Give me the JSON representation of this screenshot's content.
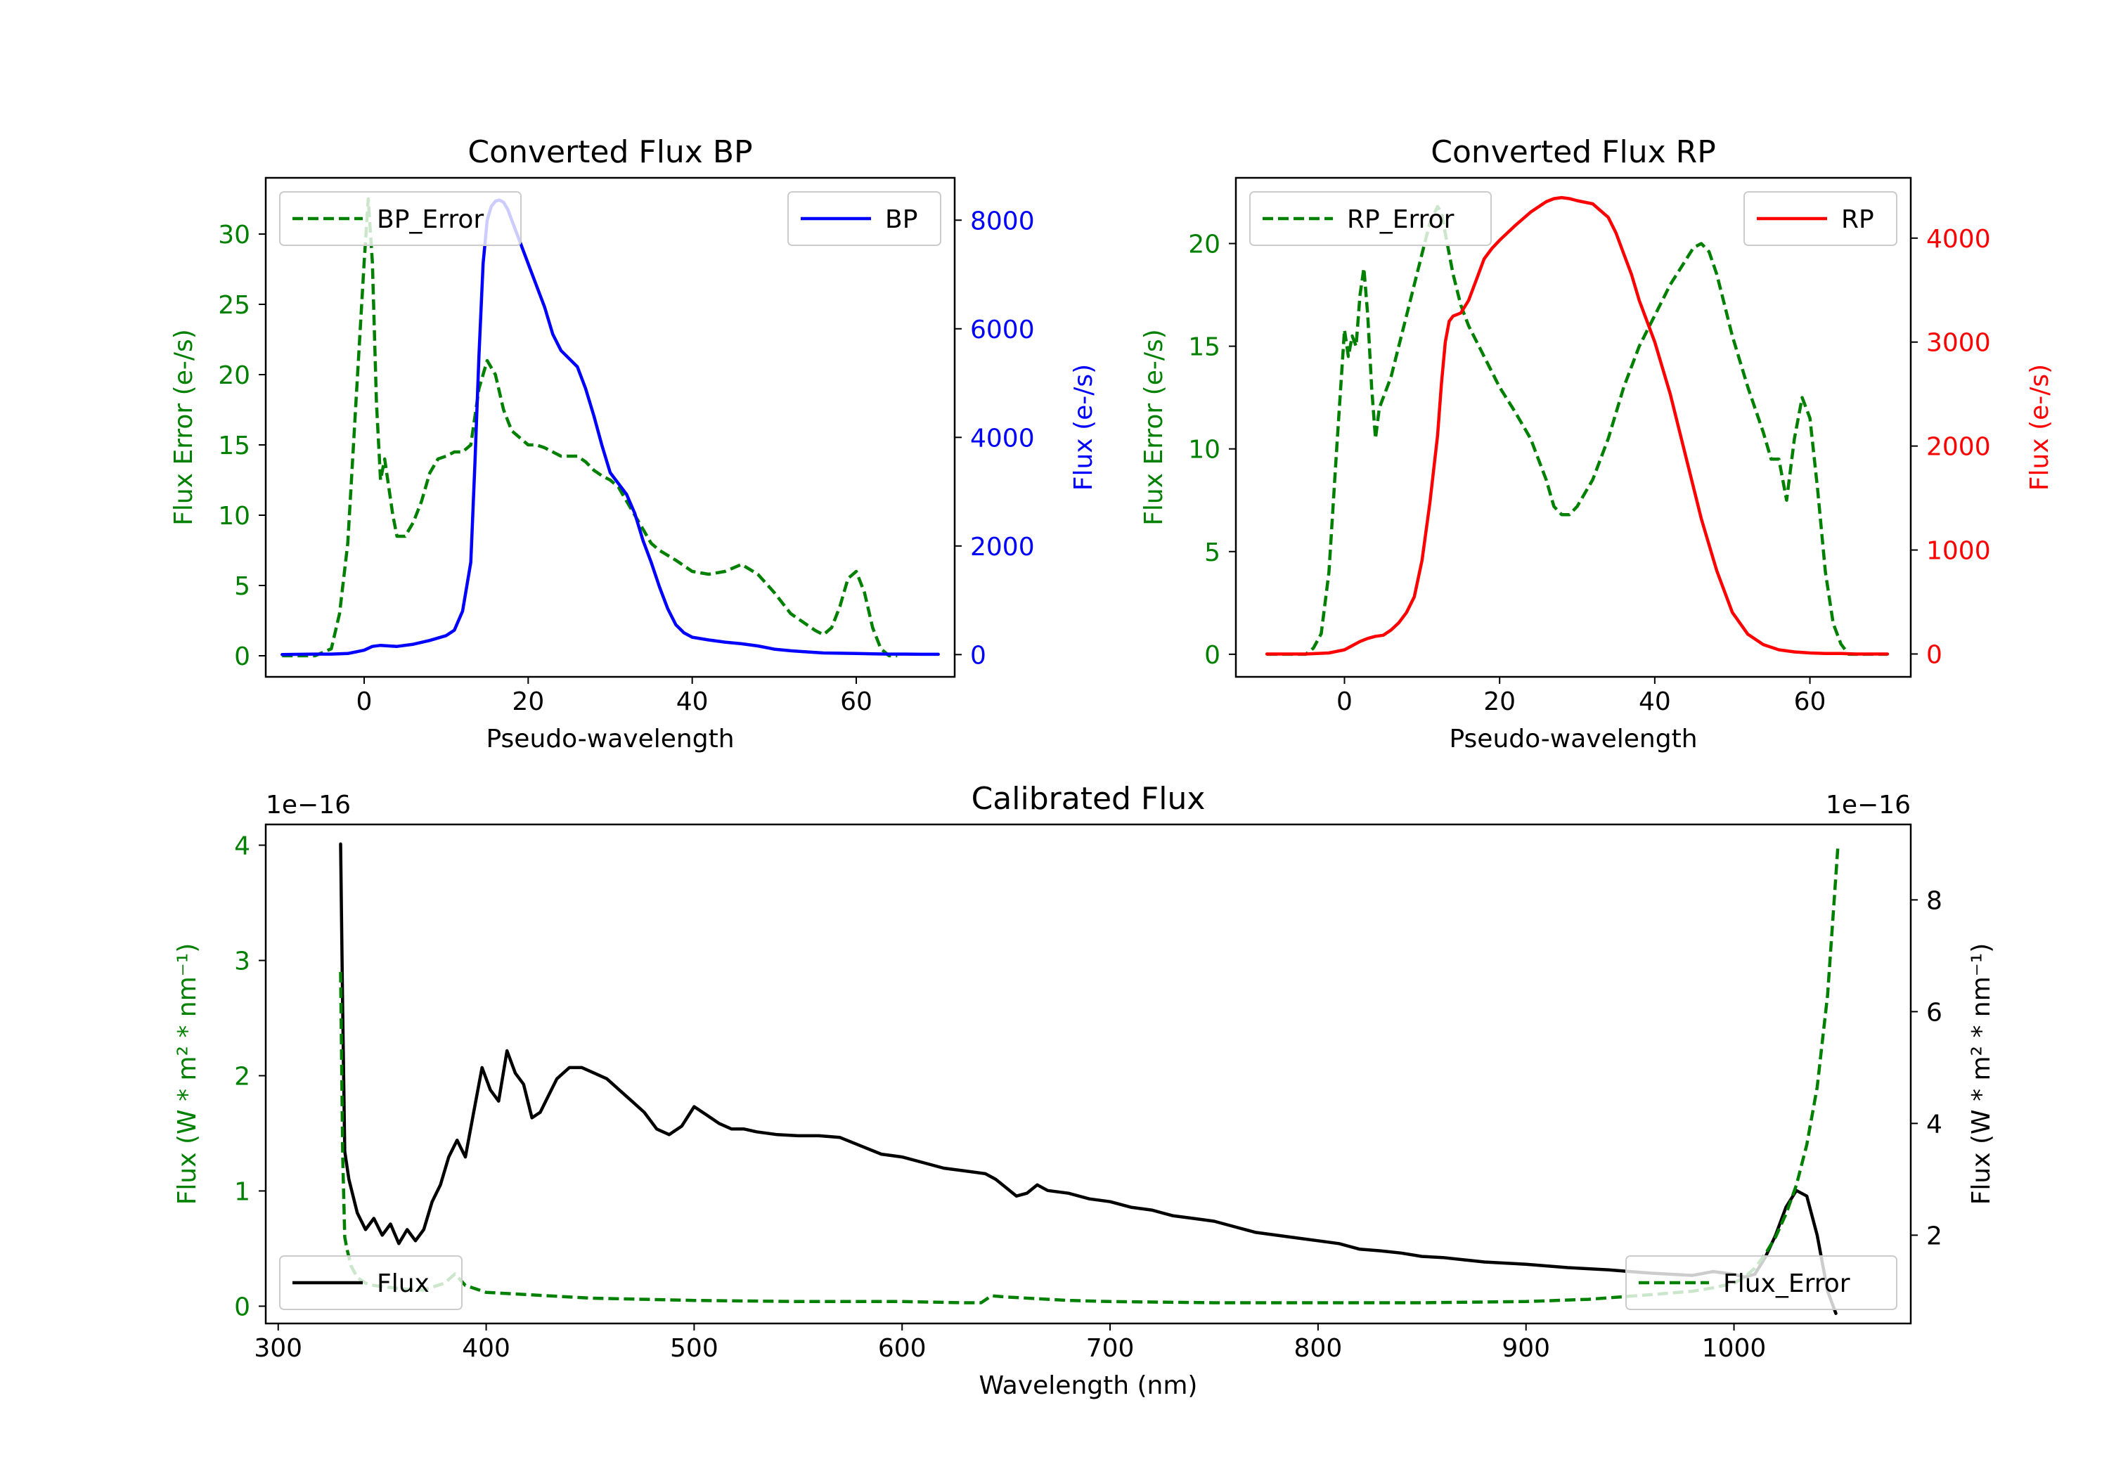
{
  "colors": {
    "green": "#008000",
    "blue": "#0000ff",
    "red": "#ff0000",
    "black": "#000000"
  },
  "chart_data": [
    {
      "id": "bp",
      "type": "line",
      "title": "Converted Flux BP",
      "xlabel": "Pseudo-wavelength",
      "ylabel_left": "Flux Error (e-/s)",
      "ylabel_right": "Flux (e-/s)",
      "xlim": [
        -12,
        72
      ],
      "ylim_left": [
        -1.5,
        34
      ],
      "ylim_right": [
        -410,
        8780
      ],
      "xticks": [
        0,
        20,
        40,
        60
      ],
      "yticks_left": [
        0,
        5,
        10,
        15,
        20,
        25,
        30
      ],
      "yticks_right": [
        0,
        2000,
        4000,
        6000,
        8000
      ],
      "legend_left": {
        "label": "BP_Error",
        "position": "upper left"
      },
      "legend_right": {
        "label": "BP",
        "position": "upper right"
      },
      "series": [
        {
          "name": "BP_Error",
          "axis": "left",
          "color": "#008000",
          "style": "dashed",
          "x": [
            -10,
            -6,
            -4,
            -3,
            -2,
            -1,
            0,
            0.5,
            1,
            1.5,
            2,
            2.5,
            3,
            3.5,
            4,
            5,
            6,
            7,
            8,
            9,
            10,
            11,
            12,
            13,
            14,
            15,
            16,
            17,
            18,
            19,
            20,
            21,
            22,
            23,
            24,
            25,
            26,
            27,
            28,
            29,
            30,
            31,
            32,
            33,
            34,
            35,
            36,
            38,
            40,
            42,
            44,
            46,
            48,
            50,
            52,
            54,
            55,
            56,
            57,
            58,
            59,
            60,
            61,
            62,
            63,
            64,
            65
          ],
          "y": [
            0,
            0,
            0.5,
            3,
            8,
            18,
            28,
            32.5,
            28,
            18,
            12.5,
            14,
            12,
            10,
            8.5,
            8.5,
            9.5,
            11,
            13,
            14,
            14.2,
            14.5,
            14.5,
            15,
            19,
            21,
            20,
            17.5,
            16,
            15.5,
            15,
            15,
            14.8,
            14.5,
            14.2,
            14.2,
            14.2,
            13.8,
            13.2,
            12.8,
            12.5,
            12,
            11,
            10,
            9,
            8,
            7.5,
            6.8,
            6,
            5.8,
            6,
            6.5,
            5.8,
            4.5,
            3,
            2.2,
            1.8,
            1.5,
            2,
            3.5,
            5.5,
            6,
            4.5,
            2,
            0.5,
            0,
            0
          ]
        },
        {
          "name": "BP",
          "axis": "right",
          "color": "#0000ff",
          "style": "solid",
          "x": [
            -10,
            -6,
            -4,
            -2,
            0,
            1,
            2,
            3,
            4,
            6,
            8,
            10,
            11,
            12,
            13,
            13.5,
            14,
            14.5,
            15,
            15.5,
            16,
            16.5,
            17,
            17.5,
            18,
            19,
            20,
            21,
            22,
            23,
            24,
            25,
            26,
            27,
            28,
            29,
            30,
            31,
            32,
            33,
            34,
            35,
            36,
            37,
            38,
            39,
            40,
            42,
            44,
            46,
            48,
            50,
            52,
            54,
            56,
            58,
            60,
            62,
            64,
            66,
            68,
            70
          ],
          "y": [
            0,
            10,
            10,
            20,
            80,
            150,
            170,
            160,
            150,
            190,
            260,
            350,
            450,
            800,
            1700,
            3500,
            5500,
            7200,
            8000,
            8250,
            8350,
            8370,
            8330,
            8200,
            8000,
            7600,
            7200,
            6800,
            6400,
            5900,
            5600,
            5450,
            5300,
            4900,
            4400,
            3850,
            3350,
            3150,
            2950,
            2600,
            2100,
            1700,
            1250,
            850,
            550,
            400,
            320,
            270,
            230,
            200,
            160,
            100,
            70,
            50,
            30,
            25,
            20,
            15,
            10,
            10,
            5,
            5
          ]
        }
      ]
    },
    {
      "id": "rp",
      "type": "line",
      "title": "Converted Flux RP",
      "xlabel": "Pseudo-wavelength",
      "ylabel_left": "Flux Error (e-/s)",
      "ylabel_right": "Flux (e-/s)",
      "xlim": [
        -14,
        73
      ],
      "ylim_left": [
        -1.1,
        23.2
      ],
      "ylim_right": [
        -220,
        4580
      ],
      "xticks": [
        0,
        20,
        40,
        60
      ],
      "yticks_left": [
        0,
        5,
        10,
        15,
        20
      ],
      "yticks_right": [
        0,
        1000,
        2000,
        3000,
        4000
      ],
      "legend_left": {
        "label": "RP_Error",
        "position": "upper left"
      },
      "legend_right": {
        "label": "RP",
        "position": "upper right"
      },
      "series": [
        {
          "name": "RP_Error",
          "axis": "left",
          "color": "#008000",
          "style": "dashed",
          "x": [
            -10,
            -5,
            -4,
            -3,
            -2,
            -1,
            0,
            0.5,
            1,
            1.5,
            2,
            2.5,
            3,
            3.5,
            4,
            4.5,
            5,
            6,
            7,
            8,
            9,
            10,
            11,
            12,
            12.5,
            13,
            14,
            15,
            16,
            18,
            20,
            22,
            24,
            25,
            26,
            27,
            28,
            29,
            30,
            32,
            34,
            36,
            38,
            40,
            42,
            44,
            45,
            46,
            47,
            48,
            49,
            50,
            52,
            54,
            55,
            56,
            57,
            58,
            59,
            60,
            61,
            62,
            63,
            64,
            65,
            70
          ],
          "y": [
            0,
            0,
            0.3,
            1,
            4,
            10,
            15.8,
            14.5,
            15.5,
            15,
            17.5,
            18.8,
            16.5,
            13,
            10.5,
            12,
            12.5,
            13.5,
            15,
            16.5,
            18,
            19.5,
            21,
            21.8,
            21.5,
            20.5,
            18.5,
            17,
            16,
            14.5,
            13,
            11.8,
            10.5,
            9.5,
            8.5,
            7.2,
            6.8,
            6.8,
            7.2,
            8.5,
            10.5,
            13,
            15,
            16.5,
            18,
            19.2,
            19.8,
            20,
            19.6,
            18.5,
            17,
            15.5,
            13,
            10.8,
            9.5,
            9.5,
            7.5,
            10.5,
            12.5,
            11.5,
            8,
            4,
            1.5,
            0.5,
            0,
            0
          ]
        },
        {
          "name": "RP",
          "axis": "right",
          "color": "#ff0000",
          "style": "solid",
          "x": [
            -10,
            -5,
            -2,
            0,
            1,
            2,
            3,
            4,
            5,
            6,
            7,
            8,
            9,
            10,
            11,
            12,
            12.5,
            13,
            13.5,
            14,
            15,
            16,
            17,
            18,
            19,
            20,
            22,
            24,
            26,
            27,
            28,
            29,
            30,
            32,
            34,
            35,
            36,
            37,
            38,
            40,
            42,
            44,
            46,
            48,
            50,
            52,
            54,
            56,
            58,
            60,
            62,
            64,
            66,
            70
          ],
          "y": [
            0,
            0,
            10,
            40,
            80,
            120,
            150,
            170,
            180,
            230,
            300,
            400,
            550,
            900,
            1450,
            2100,
            2600,
            3000,
            3200,
            3250,
            3280,
            3400,
            3600,
            3800,
            3900,
            3980,
            4120,
            4250,
            4350,
            4380,
            4390,
            4380,
            4360,
            4330,
            4200,
            4050,
            3850,
            3650,
            3400,
            3000,
            2500,
            1900,
            1300,
            800,
            400,
            190,
            90,
            40,
            20,
            10,
            5,
            5,
            0,
            0
          ]
        }
      ]
    },
    {
      "id": "cal",
      "type": "line",
      "title": "Calibrated Flux",
      "xlabel": "Wavelength (nm)",
      "ylabel_left": "Flux (W * m² * nm⁻¹)",
      "ylabel_right": "Flux (W * m² * nm⁻¹)",
      "offset_left": "1e−16",
      "offset_right": "1e−16",
      "xlim": [
        294,
        1085
      ],
      "ylim_left": [
        -0.15,
        4.18
      ],
      "ylim_right": [
        0.42,
        9.35
      ],
      "xticks": [
        300,
        400,
        500,
        600,
        700,
        800,
        900,
        1000
      ],
      "yticks_left": [
        0,
        1,
        2,
        3,
        4
      ],
      "yticks_right": [
        2,
        4,
        6,
        8
      ],
      "legend_left": {
        "label": "Flux",
        "position": "lower left"
      },
      "legend_right": {
        "label": "Flux_Error",
        "position": "lower right"
      },
      "series": [
        {
          "name": "Flux",
          "axis": "right",
          "color": "#000000",
          "style": "solid",
          "x": [
            330,
            331,
            332,
            334,
            338,
            342,
            346,
            350,
            354,
            358,
            362,
            366,
            370,
            374,
            378,
            382,
            386,
            390,
            394,
            398,
            402,
            406,
            410,
            414,
            418,
            422,
            426,
            430,
            434,
            440,
            446,
            452,
            458,
            464,
            470,
            476,
            482,
            488,
            494,
            500,
            506,
            512,
            518,
            524,
            530,
            540,
            550,
            560,
            570,
            580,
            590,
            600,
            610,
            620,
            630,
            640,
            645,
            650,
            655,
            660,
            665,
            670,
            680,
            690,
            700,
            710,
            720,
            730,
            740,
            750,
            760,
            770,
            780,
            790,
            800,
            810,
            820,
            830,
            840,
            850,
            860,
            870,
            880,
            890,
            900,
            910,
            920,
            930,
            940,
            950,
            960,
            970,
            980,
            990,
            1000,
            1005,
            1010,
            1015,
            1020,
            1025,
            1030,
            1035,
            1040,
            1045,
            1049
          ],
          "y": [
            9.0,
            6.0,
            3.5,
            3.0,
            2.4,
            2.1,
            2.3,
            2.0,
            2.2,
            1.85,
            2.1,
            1.9,
            2.1,
            2.6,
            2.9,
            3.4,
            3.7,
            3.4,
            4.2,
            5.0,
            4.6,
            4.4,
            5.3,
            4.9,
            4.7,
            4.1,
            4.2,
            4.5,
            4.8,
            5.0,
            5.0,
            4.9,
            4.8,
            4.6,
            4.4,
            4.2,
            3.9,
            3.8,
            3.95,
            4.3,
            4.15,
            4.0,
            3.9,
            3.9,
            3.85,
            3.8,
            3.78,
            3.78,
            3.75,
            3.6,
            3.45,
            3.4,
            3.3,
            3.2,
            3.15,
            3.1,
            3.0,
            2.85,
            2.7,
            2.75,
            2.9,
            2.8,
            2.75,
            2.65,
            2.6,
            2.5,
            2.45,
            2.35,
            2.3,
            2.25,
            2.15,
            2.05,
            2.0,
            1.95,
            1.9,
            1.85,
            1.75,
            1.72,
            1.68,
            1.62,
            1.6,
            1.56,
            1.52,
            1.5,
            1.48,
            1.45,
            1.42,
            1.4,
            1.38,
            1.35,
            1.32,
            1.3,
            1.28,
            1.35,
            1.3,
            1.25,
            1.3,
            1.6,
            2.0,
            2.5,
            2.8,
            2.7,
            2.0,
            1.0,
            0.6
          ]
        },
        {
          "name": "Flux_Error",
          "axis": "left",
          "color": "#008000",
          "style": "dashed",
          "x": [
            330,
            331,
            332,
            333,
            335,
            338,
            342,
            346,
            350,
            360,
            370,
            380,
            385,
            390,
            400,
            420,
            450,
            500,
            550,
            600,
            630,
            638,
            643,
            650,
            680,
            700,
            750,
            800,
            850,
            900,
            930,
            960,
            980,
            990,
            1000,
            1005,
            1010,
            1015,
            1020,
            1025,
            1030,
            1035,
            1040,
            1045,
            1050
          ],
          "y": [
            2.9,
            1.3,
            0.6,
            0.5,
            0.35,
            0.25,
            0.2,
            0.18,
            0.17,
            0.15,
            0.14,
            0.2,
            0.28,
            0.18,
            0.12,
            0.1,
            0.07,
            0.05,
            0.04,
            0.04,
            0.03,
            0.03,
            0.09,
            0.08,
            0.05,
            0.04,
            0.03,
            0.03,
            0.03,
            0.04,
            0.06,
            0.1,
            0.13,
            0.16,
            0.2,
            0.25,
            0.33,
            0.45,
            0.6,
            0.8,
            1.05,
            1.4,
            1.9,
            2.7,
            4.0
          ]
        }
      ]
    }
  ]
}
